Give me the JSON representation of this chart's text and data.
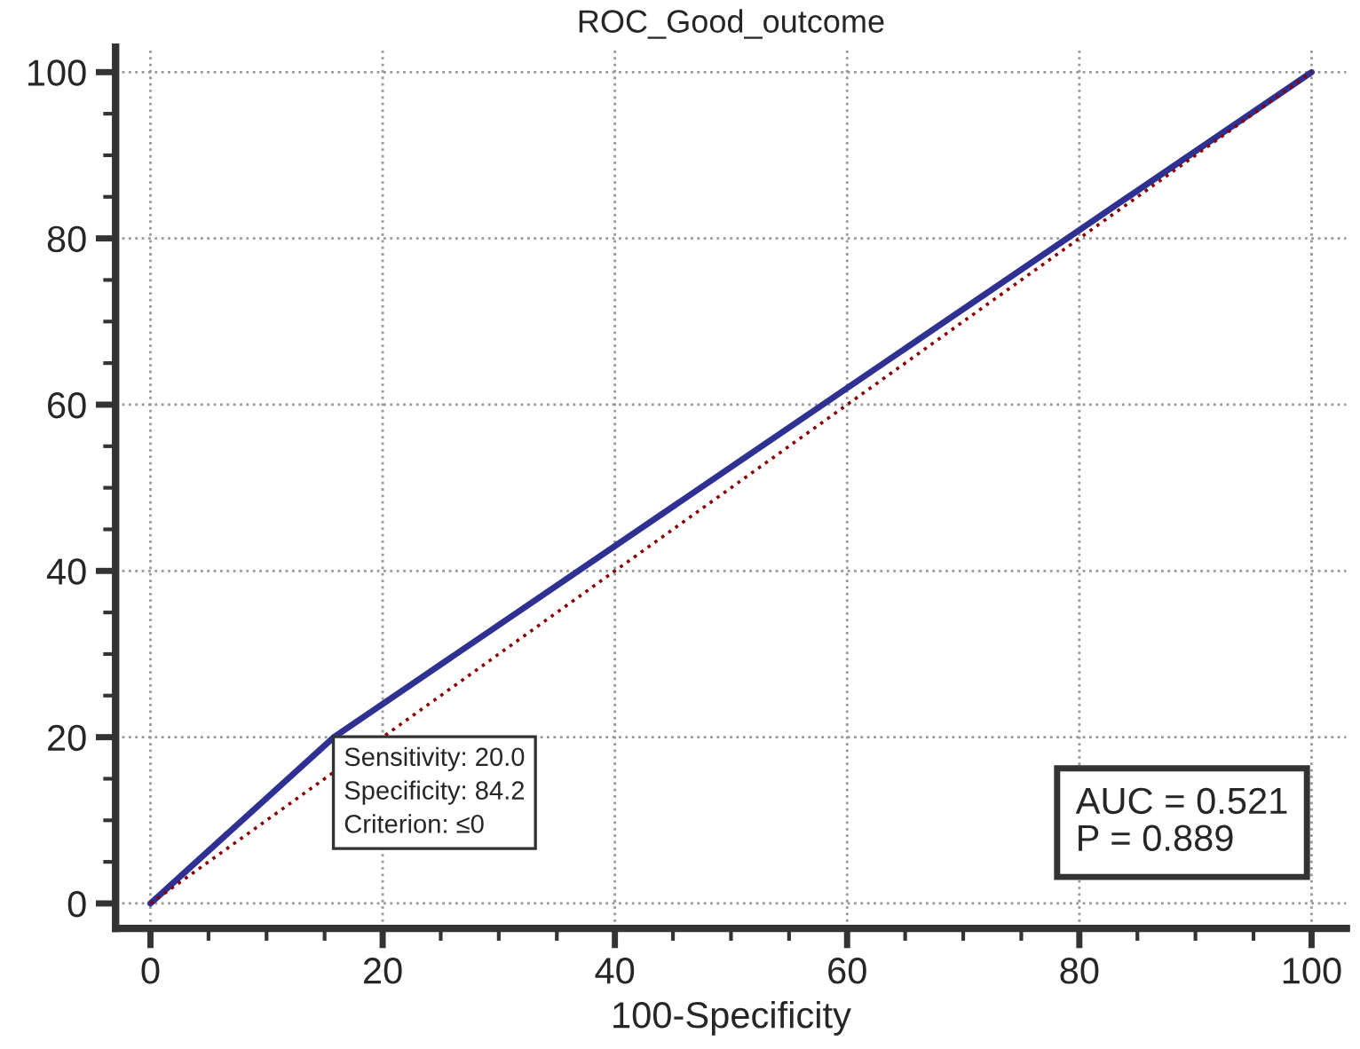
{
  "chart_data": {
    "type": "line",
    "title": "ROC_Good_outcome",
    "xlabel": "100-Specificity",
    "series": [
      {
        "x": [
          0,
          15.8,
          100
        ],
        "values": [
          0,
          20,
          100
        ],
        "color": "#2e3192",
        "line_style": "solid"
      },
      {
        "x": [
          0,
          100
        ],
        "values": [
          0,
          100
        ],
        "color": "#8b0000",
        "line_style": "dotted"
      }
    ],
    "annotations": [
      {
        "text": "Sensitivity: 20.0\nSpecificity: 84.2\nCriterion: ≤0",
        "x": 15.8,
        "y": 20
      },
      "AUC = 0.521\nP = 0.889"
    ],
    "xlim": [
      -3,
      103
    ],
    "ylim": [
      -3,
      103
    ],
    "xticks": [
      0,
      20,
      40,
      60,
      80,
      100
    ],
    "yticks": [
      0,
      20,
      40,
      60,
      80,
      100
    ],
    "grid": true,
    "marker": "none"
  }
}
